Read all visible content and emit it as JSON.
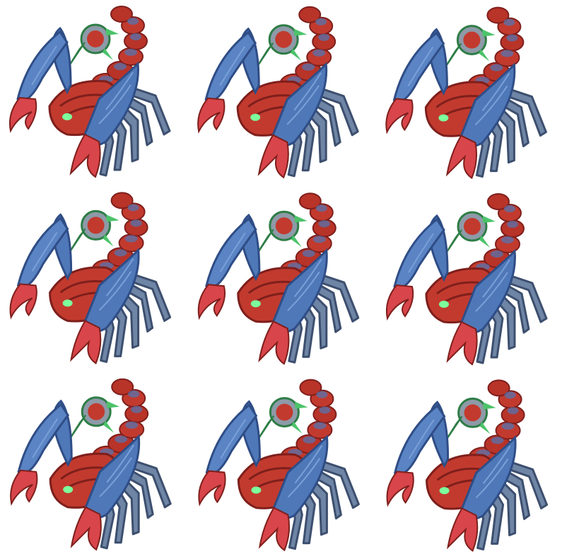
{
  "sprite_sheet": {
    "rows": 3,
    "columns": 3,
    "background": "#ffffff",
    "sprite": {
      "icon": "scorpion-creature-icon",
      "colors": {
        "shell_blue": "#4f78b8",
        "shell_blue_light": "#7aa0d8",
        "shell_blue_dark": "#2f4d86",
        "carapace_red": "#c23a2e",
        "carapace_red_dark": "#7e1f1c",
        "claw_red": "#d8454a",
        "stinger_green": "#4cc36a",
        "stinger_green_dark": "#2e7d46",
        "leg_gray": "#6f85a6",
        "leg_dark": "#3d4f6e",
        "eye_glow": "#7dff9c",
        "orb_gray": "#8e9aa8"
      }
    },
    "frames": [
      {
        "index": 1,
        "shift": 0.0
      },
      {
        "index": 2,
        "shift": 0.2
      },
      {
        "index": 3,
        "shift": 0.4
      },
      {
        "index": 4,
        "shift": 0.1
      },
      {
        "index": 5,
        "shift": 0.3
      },
      {
        "index": 6,
        "shift": 0.5
      },
      {
        "index": 7,
        "shift": 0.2
      },
      {
        "index": 8,
        "shift": 0.4
      },
      {
        "index": 9,
        "shift": 0.6
      }
    ]
  }
}
